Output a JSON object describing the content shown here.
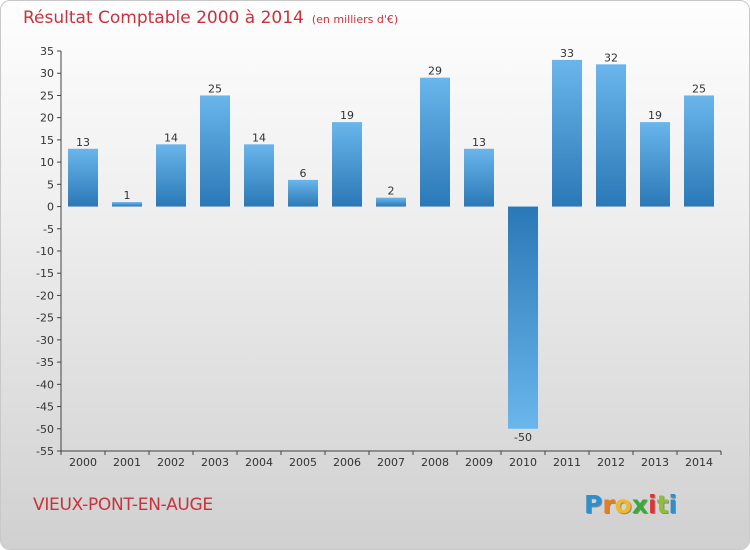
{
  "chart_data": {
    "type": "bar",
    "title": "Résultat Comptable 2000 à 2014",
    "subtitle": "(en milliers d'€)",
    "categories": [
      "2000",
      "2001",
      "2002",
      "2003",
      "2004",
      "2005",
      "2006",
      "2007",
      "2008",
      "2009",
      "2010",
      "2011",
      "2012",
      "2013",
      "2014"
    ],
    "values": [
      13,
      1,
      14,
      25,
      14,
      6,
      19,
      2,
      29,
      13,
      -50,
      33,
      32,
      19,
      25
    ],
    "ylim": [
      -55,
      35
    ],
    "yticks": [
      35,
      30,
      25,
      20,
      15,
      10,
      5,
      0,
      -5,
      -10,
      -15,
      -20,
      -25,
      -30,
      -35,
      -40,
      -45,
      -50,
      -55
    ],
    "grid": false,
    "xlabel": "",
    "ylabel": ""
  },
  "footer": {
    "town": "VIEUX-PONT-EN-AUGE",
    "logo_letters": [
      "P",
      "r",
      "o",
      "x",
      "i",
      "t",
      "i"
    ],
    "logo_colors": [
      "#2e8fcb",
      "#e27f1e",
      "#f0b92c",
      "#3aaa35",
      "#e5312d",
      "#8fbe3c",
      "#2e8fcb"
    ]
  },
  "colors": {
    "bar_light": "#6ab6ec",
    "bar_dark": "#2a78b6",
    "title": "#c8323c"
  }
}
